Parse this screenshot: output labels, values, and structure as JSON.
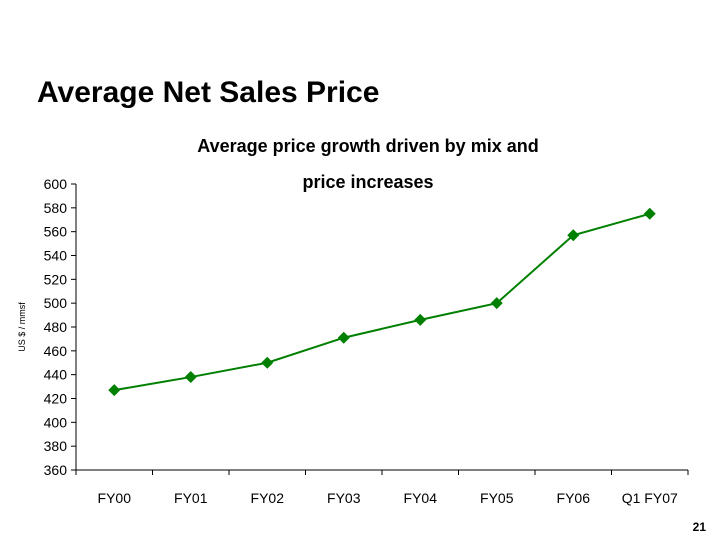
{
  "slide": {
    "title": "Average Net Sales Price",
    "page_number": "21"
  },
  "chart_data": {
    "type": "line",
    "title": "Average price growth driven by mix and price increases",
    "subtitle_lines": [
      "Average price growth driven by mix and",
      "price increases"
    ],
    "xlabel": "",
    "ylabel": "US $ / mmsf",
    "categories": [
      "FY00",
      "FY01",
      "FY02",
      "FY03",
      "FY04",
      "FY05",
      "FY06",
      "Q1 FY07"
    ],
    "series": [
      {
        "name": "Average Net Sales Price",
        "values": [
          427,
          438,
          450,
          471,
          486,
          500,
          557,
          575
        ],
        "color": "#008000"
      }
    ],
    "ylim": [
      360,
      600
    ],
    "yticks": [
      360,
      380,
      400,
      420,
      440,
      460,
      480,
      500,
      520,
      540,
      560,
      580,
      600
    ],
    "grid": false
  }
}
